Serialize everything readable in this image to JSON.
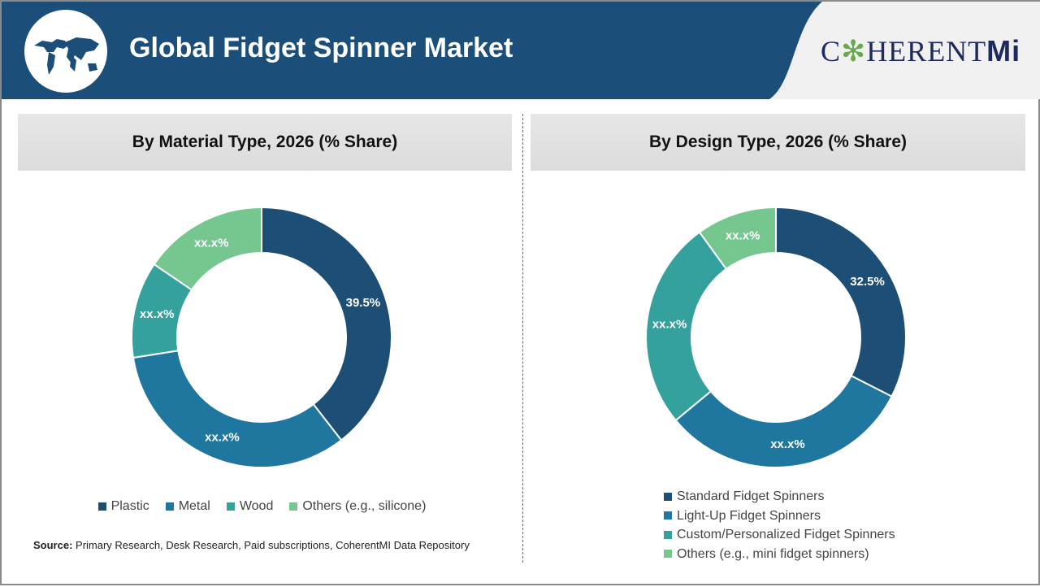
{
  "header": {
    "title": "Global Fidget Spinner Market",
    "logo_text": "COHERENTMI",
    "globe_icon": "world-map-globe",
    "band_color": "#1b4f7a"
  },
  "chart_data": [
    {
      "type": "pie",
      "donut": true,
      "title": "By Material Type, 2026 (% Share)",
      "categories": [
        "Plastic",
        "Metal",
        "Wood",
        "Others (e.g., silicone)"
      ],
      "values": [
        39.5,
        33,
        12,
        15.5
      ],
      "labels": [
        "39.5%",
        "xx.x%",
        "xx.x%",
        "xx.x%"
      ],
      "colors": [
        "#1d4e75",
        "#1f77a0",
        "#35a19c",
        "#76c690"
      ],
      "legend": "bottom"
    },
    {
      "type": "pie",
      "donut": true,
      "title": "By Design Type, 2026 (% Share)",
      "categories": [
        "Standard Fidget Spinners",
        "Light-Up Fidget Spinners",
        "Custom/Personalized Fidget Spinners",
        "Others (e.g., mini fidget spinners)"
      ],
      "values": [
        32.5,
        31.5,
        26,
        10
      ],
      "labels": [
        "32.5%",
        "xx.x%",
        "xx.x%",
        "xx.x%"
      ],
      "colors": [
        "#1d4e75",
        "#1f77a0",
        "#35a19c",
        "#76c690"
      ],
      "legend": "bottom"
    }
  ],
  "source": {
    "label": "Source:",
    "text": " Primary Research, Desk Research, Paid subscriptions, CoherentMI Data Repository"
  }
}
